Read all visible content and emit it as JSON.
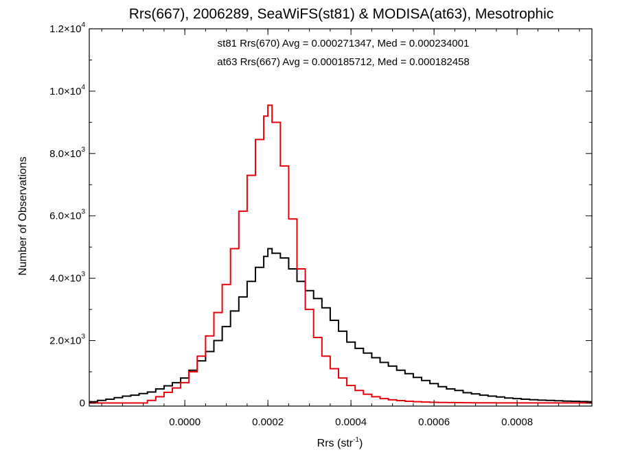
{
  "chart_data": {
    "type": "histogram",
    "title": "Rrs(667), 2006289, SeaWiFS(st81) & MODISA(at63), Mesotrophic",
    "xlabel_main": "Rrs (str",
    "xlabel_sup": "-1",
    "xlabel_close": ")",
    "ylabel": "Number of Observations",
    "xlim": [
      -0.00023,
      0.00098
    ],
    "ylim": [
      -100,
      12000
    ],
    "x_ticks": [
      {
        "value": 0.0,
        "label": "0.0000"
      },
      {
        "value": 0.0002,
        "label": "0.0002"
      },
      {
        "value": 0.0004,
        "label": "0.0004"
      },
      {
        "value": 0.0006,
        "label": "0.0006"
      },
      {
        "value": 0.0008,
        "label": "0.0008"
      }
    ],
    "y_ticks": [
      {
        "value": 0,
        "label": "0",
        "sup": ""
      },
      {
        "value": 2000,
        "label": "2.0×10",
        "sup": "3"
      },
      {
        "value": 4000,
        "label": "4.0×10",
        "sup": "3"
      },
      {
        "value": 6000,
        "label": "6.0×10",
        "sup": "3"
      },
      {
        "value": 8000,
        "label": "8.0×10",
        "sup": "3"
      },
      {
        "value": 10000,
        "label": "1.0×10",
        "sup": "4"
      },
      {
        "value": 12000,
        "label": "1.2×10",
        "sup": "4"
      }
    ],
    "annotations": [
      {
        "text": "st81 Rrs(670) Avg = 0.000271347, Med = 0.000234001",
        "color": "#000000"
      },
      {
        "text": "at63 Rrs(667) Avg = 0.000185712, Med = 0.000182458",
        "color": "#e8000b"
      }
    ],
    "series": [
      {
        "name": "st81 Rrs(670)",
        "color": "#000000",
        "points": [
          [
            -0.00023,
            40
          ],
          [
            -0.00021,
            80
          ],
          [
            -0.00019,
            120
          ],
          [
            -0.00017,
            170
          ],
          [
            -0.00015,
            220
          ],
          [
            -0.00013,
            250
          ],
          [
            -0.00011,
            300
          ],
          [
            -9e-05,
            350
          ],
          [
            -7e-05,
            450
          ],
          [
            -5e-05,
            550
          ],
          [
            -3e-05,
            650
          ],
          [
            -1e-05,
            800
          ],
          [
            1e-05,
            1050
          ],
          [
            3e-05,
            1350
          ],
          [
            5e-05,
            1650
          ],
          [
            7e-05,
            2000
          ],
          [
            9e-05,
            2450
          ],
          [
            0.00011,
            2950
          ],
          [
            0.00013,
            3400
          ],
          [
            0.00015,
            3900
          ],
          [
            0.00017,
            4350
          ],
          [
            0.00019,
            4700
          ],
          [
            0.0002,
            4950
          ],
          [
            0.00021,
            4800
          ],
          [
            0.00023,
            4650
          ],
          [
            0.00025,
            4300
          ],
          [
            0.00027,
            3900
          ],
          [
            0.00029,
            3600
          ],
          [
            0.00031,
            3350
          ],
          [
            0.00033,
            3050
          ],
          [
            0.00035,
            2650
          ],
          [
            0.00037,
            2300
          ],
          [
            0.00039,
            1950
          ],
          [
            0.00041,
            1750
          ],
          [
            0.00043,
            1600
          ],
          [
            0.00045,
            1450
          ],
          [
            0.00047,
            1300
          ],
          [
            0.00049,
            1180
          ],
          [
            0.00051,
            1050
          ],
          [
            0.00053,
            940
          ],
          [
            0.00055,
            820
          ],
          [
            0.00057,
            720
          ],
          [
            0.00059,
            620
          ],
          [
            0.00061,
            520
          ],
          [
            0.00063,
            450
          ],
          [
            0.00065,
            400
          ],
          [
            0.00067,
            330
          ],
          [
            0.00069,
            290
          ],
          [
            0.00071,
            250
          ],
          [
            0.00073,
            220
          ],
          [
            0.00075,
            190
          ],
          [
            0.00077,
            160
          ],
          [
            0.00079,
            140
          ],
          [
            0.00081,
            120
          ],
          [
            0.00083,
            105
          ],
          [
            0.00085,
            90
          ],
          [
            0.00087,
            80
          ],
          [
            0.00089,
            70
          ],
          [
            0.00091,
            60
          ],
          [
            0.00093,
            55
          ],
          [
            0.00095,
            45
          ],
          [
            0.00097,
            40
          ]
        ]
      },
      {
        "name": "at63 Rrs(667)",
        "color": "#e8000b",
        "points": [
          [
            -0.00023,
            0
          ],
          [
            -0.00011,
            0
          ],
          [
            -9e-05,
            80
          ],
          [
            -7e-05,
            200
          ],
          [
            -5e-05,
            340
          ],
          [
            -3e-05,
            480
          ],
          [
            -1e-05,
            650
          ],
          [
            1e-05,
            1000
          ],
          [
            3e-05,
            1500
          ],
          [
            5e-05,
            2150
          ],
          [
            7e-05,
            2900
          ],
          [
            9e-05,
            3800
          ],
          [
            0.00011,
            4950
          ],
          [
            0.00013,
            6150
          ],
          [
            0.00015,
            7300
          ],
          [
            0.00017,
            8450
          ],
          [
            0.00019,
            9200
          ],
          [
            0.0002,
            9550
          ],
          [
            0.00021,
            9000
          ],
          [
            0.00023,
            7600
          ],
          [
            0.00025,
            5900
          ],
          [
            0.00027,
            4300
          ],
          [
            0.00029,
            3000
          ],
          [
            0.00031,
            2100
          ],
          [
            0.00033,
            1500
          ],
          [
            0.00035,
            1100
          ],
          [
            0.00037,
            800
          ],
          [
            0.00039,
            560
          ],
          [
            0.00041,
            400
          ],
          [
            0.00043,
            280
          ],
          [
            0.00045,
            200
          ],
          [
            0.00047,
            140
          ],
          [
            0.00049,
            100
          ],
          [
            0.00051,
            75
          ],
          [
            0.00053,
            55
          ],
          [
            0.00055,
            40
          ],
          [
            0.00057,
            30
          ],
          [
            0.00059,
            22
          ],
          [
            0.00061,
            16
          ],
          [
            0.00063,
            12
          ],
          [
            0.00065,
            9
          ],
          [
            0.00067,
            7
          ],
          [
            0.00069,
            5
          ],
          [
            0.00071,
            4
          ],
          [
            0.00073,
            3
          ],
          [
            0.00075,
            2
          ],
          [
            0.00077,
            1
          ],
          [
            0.00097,
            0
          ]
        ]
      }
    ]
  }
}
